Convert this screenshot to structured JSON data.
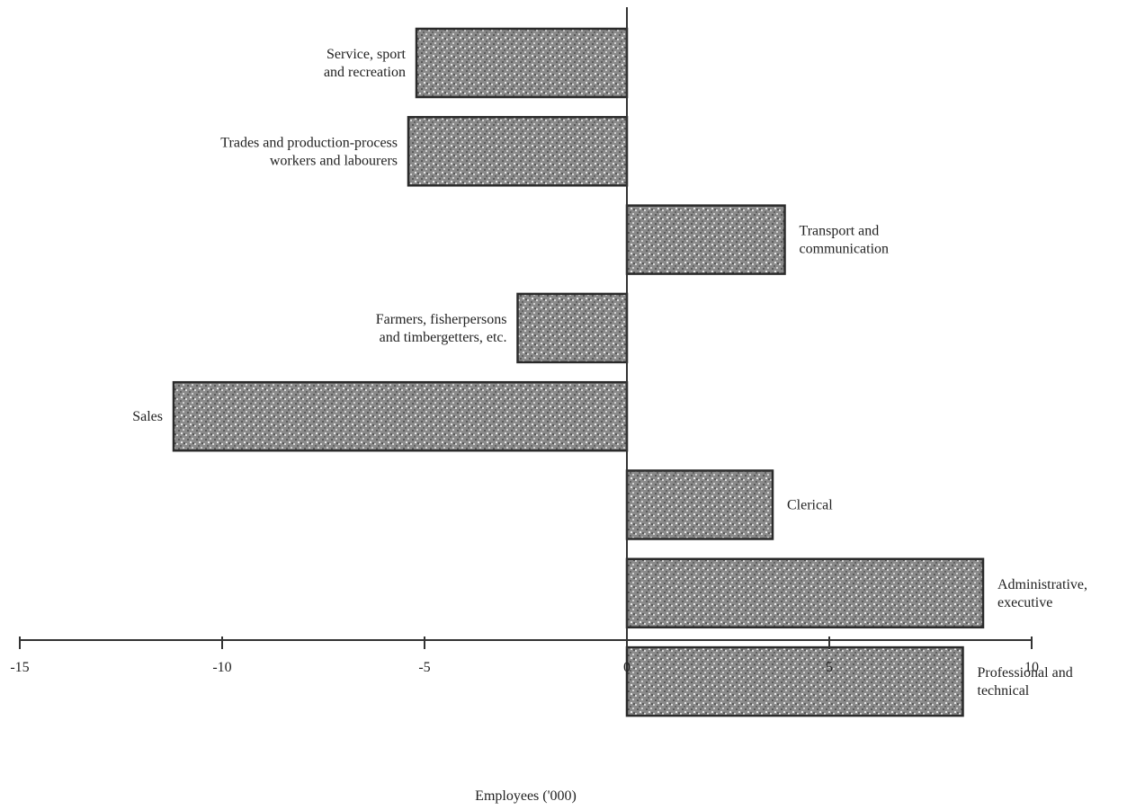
{
  "chart_data": {
    "type": "bar",
    "orientation": "horizontal",
    "title": "",
    "xlabel": "Employees ('000)",
    "ylabel": "",
    "xlim": [
      -15,
      10
    ],
    "x_ticks": [
      -15,
      -10,
      -5,
      0,
      5,
      10
    ],
    "x_tick_labels": [
      "-15",
      "-10",
      "-5",
      "0",
      "5",
      "10"
    ],
    "grid": false,
    "legend": "none",
    "bar_color": "#5a5a5a",
    "categories": [
      {
        "lines": [
          "Service, sport",
          "and recreation"
        ],
        "value": -5.2
      },
      {
        "lines": [
          "Trades and production-process",
          "workers and labourers"
        ],
        "value": -5.4
      },
      {
        "lines": [
          "Transport and",
          "communication"
        ],
        "value": 3.9
      },
      {
        "lines": [
          "Farmers, fisherpersons",
          "and timbergetters, etc."
        ],
        "value": -2.7
      },
      {
        "lines": [
          "Sales"
        ],
        "value": -11.2
      },
      {
        "lines": [
          "Clerical"
        ],
        "value": 3.6
      },
      {
        "lines": [
          "Administrative,",
          "executive"
        ],
        "value": 8.8
      },
      {
        "lines": [
          "Professional and",
          "technical"
        ],
        "value": 8.3
      }
    ]
  }
}
